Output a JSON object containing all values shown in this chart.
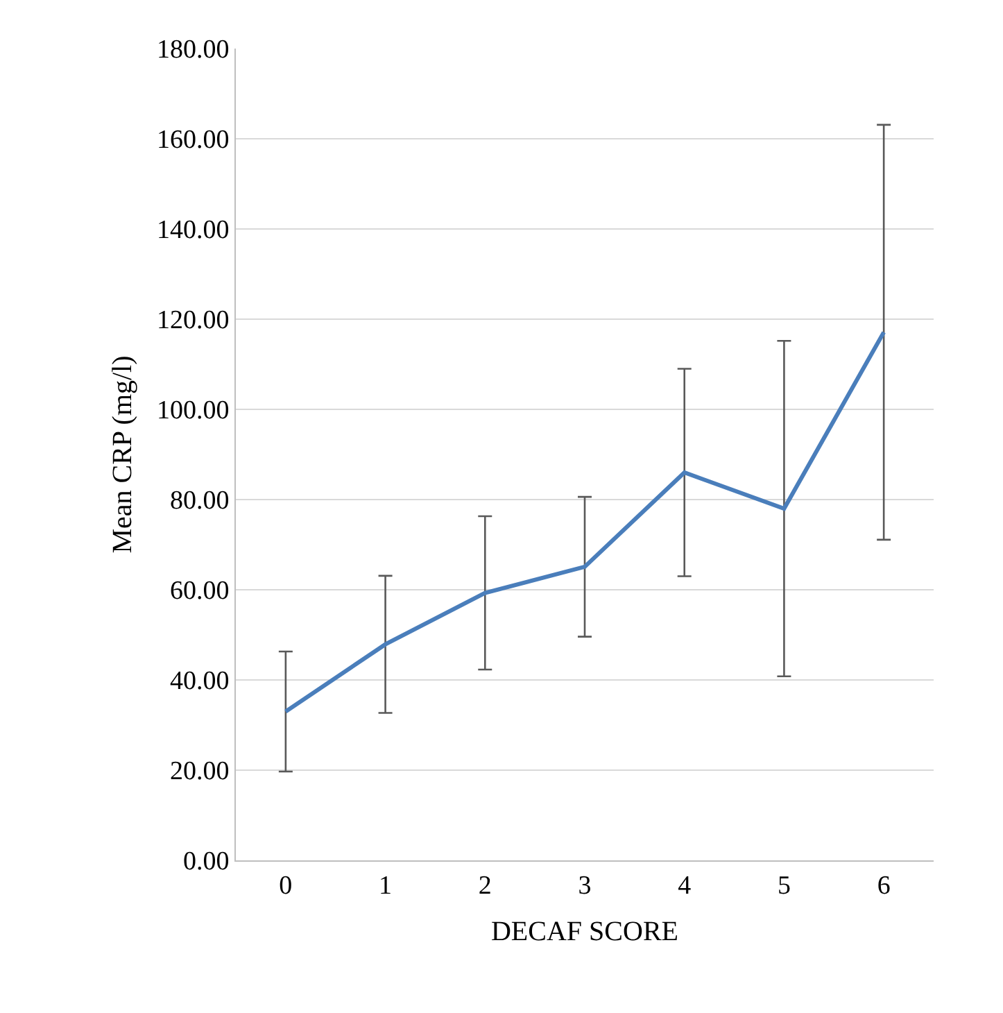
{
  "chart_data": {
    "type": "line",
    "xlabel": "DECAF SCORE",
    "ylabel": "Mean CRP (mg/l)",
    "categories": [
      "0",
      "1",
      "2",
      "3",
      "4",
      "5",
      "6"
    ],
    "series": [
      {
        "color": "#4a7ebb",
        "values": [
          33.0,
          47.9,
          59.3,
          65.1,
          86.0,
          78.0,
          117.1
        ],
        "errors": [
          13.3,
          15.2,
          17.0,
          15.5,
          23.0,
          37.2,
          46.0
        ]
      }
    ],
    "ylim": [
      0,
      180
    ],
    "yticks": [
      {
        "value": 0,
        "label": "0.00"
      },
      {
        "value": 20,
        "label": "20.00"
      },
      {
        "value": 40,
        "label": "40.00"
      },
      {
        "value": 60,
        "label": "60.00"
      },
      {
        "value": 80,
        "label": "80.00"
      },
      {
        "value": 100,
        "label": "100.00"
      },
      {
        "value": 120,
        "label": "120.00"
      },
      {
        "value": 140,
        "label": "140.00"
      },
      {
        "value": 160,
        "label": "160.00"
      },
      {
        "value": 180,
        "label": "180.00"
      }
    ],
    "grid": "y",
    "marker": "none",
    "line_style": "solid"
  }
}
